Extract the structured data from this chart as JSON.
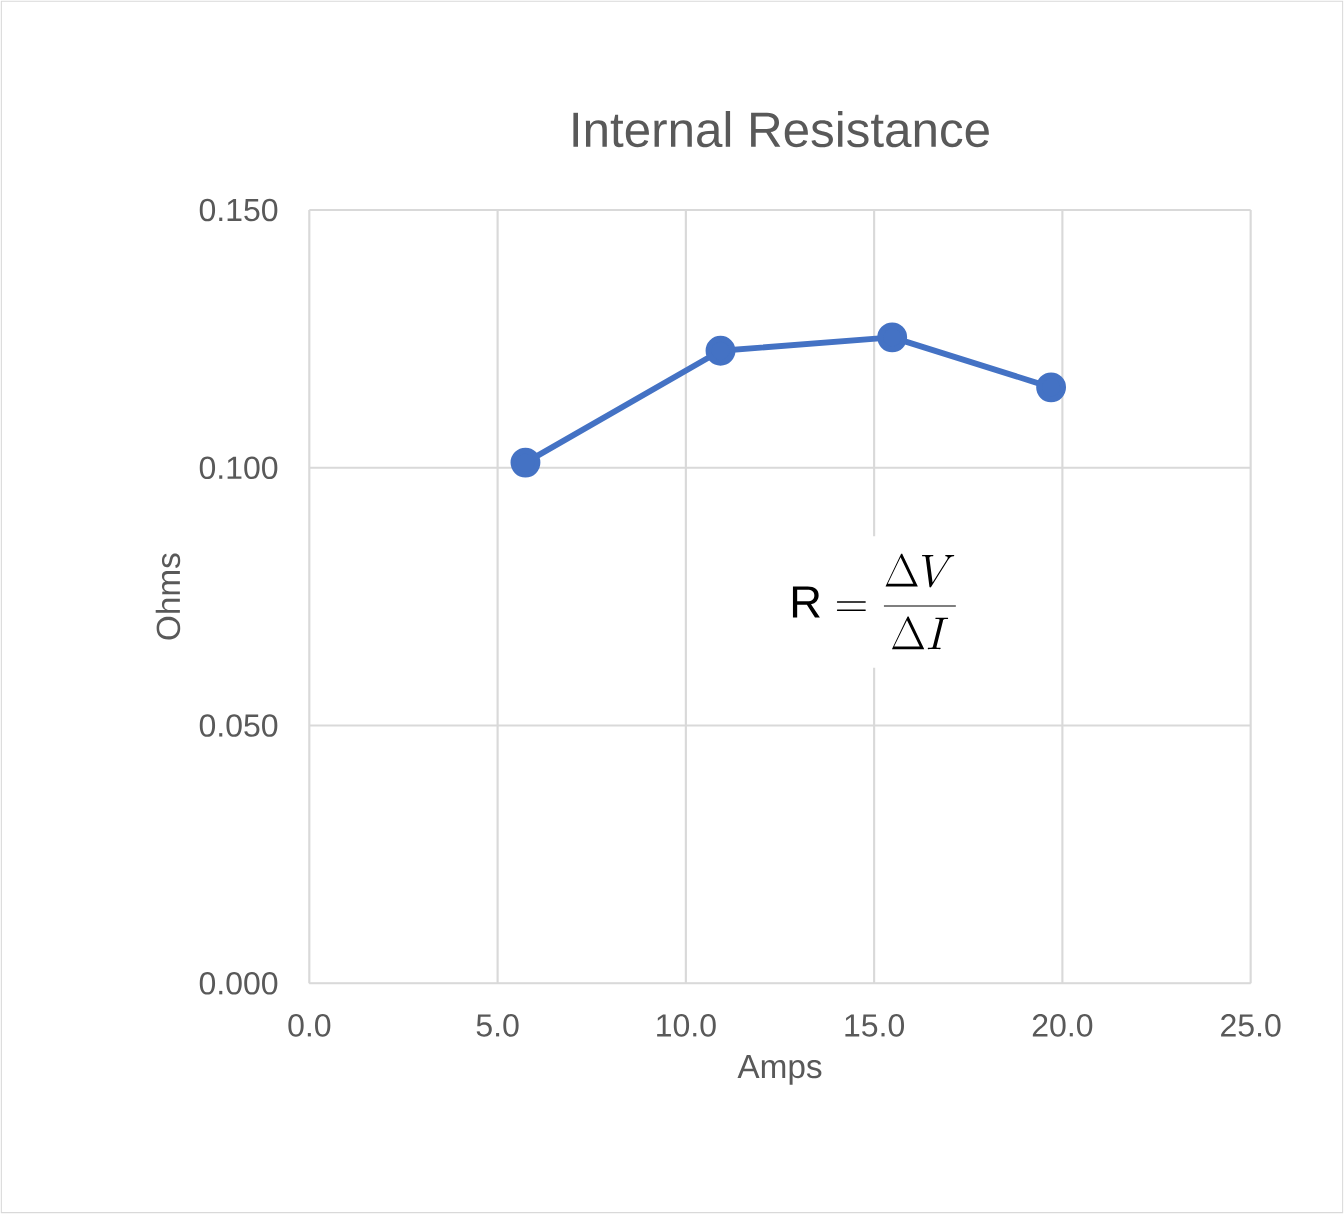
{
  "chart_data": {
    "type": "line",
    "title": "Internal Resistance",
    "xlabel": "Amps",
    "ylabel": "Ohms",
    "x": [
      5.74,
      10.92,
      15.48,
      19.7
    ],
    "series": [
      {
        "color": "#4472c4",
        "values": [
          0.101,
          0.1227,
          0.1253,
          0.1156
        ]
      }
    ],
    "xlim": [
      0,
      25
    ],
    "xticks": [
      {
        "value": 0,
        "label": "0.0"
      },
      {
        "value": 5,
        "label": "5.0"
      },
      {
        "value": 10,
        "label": "10.0"
      },
      {
        "value": 15,
        "label": "15.0"
      },
      {
        "value": 20,
        "label": "20.0"
      },
      {
        "value": 25,
        "label": "25.0"
      }
    ],
    "ylim": [
      0,
      0.15
    ],
    "yticks": [
      {
        "value": 0,
        "label": "0.000"
      },
      {
        "value": 0.05,
        "label": "0.050"
      },
      {
        "value": 0.1,
        "label": "0.100"
      },
      {
        "value": 0.15,
        "label": "0.150"
      }
    ],
    "grid": true,
    "marker": "circle",
    "line_style": "solid",
    "annotations": [
      "\\mathrm{R} = \\frac{\\Delta V}{\\Delta I}"
    ]
  }
}
